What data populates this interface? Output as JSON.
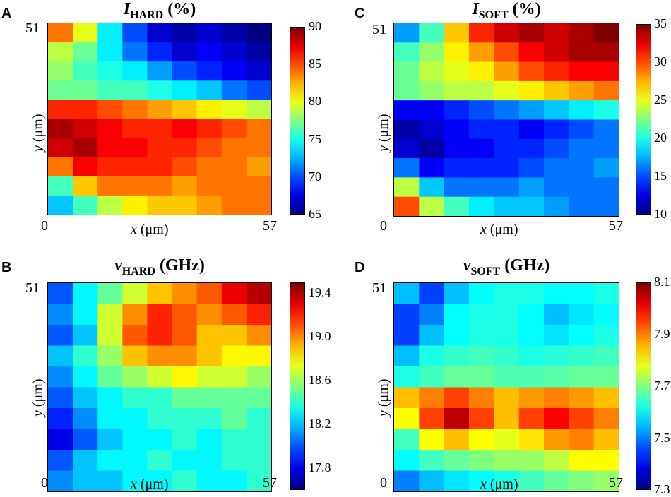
{
  "chart_data": [
    {
      "panel": "A",
      "type": "heatmap",
      "title_symbol": "I",
      "title_sub": "HARD",
      "title_unit": "(%)",
      "xlabel_sym": "x",
      "xlabel_unit": "(μm)",
      "ylabel_sym": "y",
      "ylabel_unit": "(μm)",
      "x_tick_labels": [
        "0",
        "57"
      ],
      "y_tick_labels": [
        "51"
      ],
      "xlim": [
        0,
        57
      ],
      "ylim": [
        0,
        51
      ],
      "colorbar": {
        "min": 65,
        "max": 90,
        "ticks": [
          "90",
          "85",
          "80",
          "75",
          "70",
          "65"
        ]
      },
      "grid": [
        [
          84,
          80,
          74,
          70,
          67,
          66,
          67,
          66,
          65
        ],
        [
          79,
          77,
          74,
          71,
          69,
          67,
          68,
          67,
          66
        ],
        [
          78,
          76,
          75,
          74,
          72,
          70,
          69,
          68,
          67
        ],
        [
          77,
          77,
          76,
          76,
          75,
          74,
          73,
          71,
          70
        ],
        [
          86,
          86,
          85,
          84,
          83,
          82,
          81,
          80,
          79
        ],
        [
          89,
          88,
          87,
          86,
          86,
          87,
          86,
          85,
          84
        ],
        [
          88,
          89,
          87,
          87,
          86,
          86,
          85,
          84,
          84
        ],
        [
          84,
          87,
          86,
          86,
          86,
          85,
          84,
          84,
          83
        ],
        [
          76,
          82,
          84,
          84,
          84,
          83,
          84,
          84,
          84
        ],
        [
          73,
          76,
          79,
          81,
          82,
          82,
          83,
          84,
          84
        ]
      ]
    },
    {
      "panel": "C",
      "type": "heatmap",
      "title_symbol": "I",
      "title_sub": "SOFT",
      "title_unit": "(%)",
      "xlabel_sym": "x",
      "xlabel_unit": "(μm)",
      "ylabel_sym": "y",
      "ylabel_unit": "(μm)",
      "x_tick_labels": [
        "0",
        "57"
      ],
      "y_tick_labels": [
        "51"
      ],
      "xlim": [
        0,
        57
      ],
      "ylim": [
        0,
        51
      ],
      "colorbar": {
        "min": 10,
        "max": 35,
        "ticks": [
          "35",
          "30",
          "25",
          "20",
          "15",
          "10"
        ]
      },
      "grid": [
        [
          17,
          21,
          27,
          31,
          33,
          34,
          33,
          34,
          35
        ],
        [
          21,
          23,
          26,
          28,
          30,
          32,
          33,
          34,
          34
        ],
        [
          22,
          24,
          25,
          26,
          28,
          30,
          31,
          32,
          32
        ],
        [
          22,
          23,
          24,
          24,
          25,
          26,
          27,
          28,
          29
        ],
        [
          13,
          13,
          14,
          15,
          16,
          17,
          18,
          19,
          20
        ],
        [
          11,
          12,
          13,
          14,
          14,
          13,
          14,
          15,
          16
        ],
        [
          12,
          11,
          13,
          13,
          14,
          14,
          15,
          16,
          16
        ],
        [
          16,
          13,
          14,
          14,
          14,
          15,
          16,
          16,
          17
        ],
        [
          24,
          18,
          16,
          16,
          16,
          17,
          16,
          16,
          16
        ],
        [
          30,
          24,
          21,
          19,
          18,
          18,
          17,
          16,
          16
        ]
      ]
    },
    {
      "panel": "B",
      "type": "heatmap",
      "title_symbol": "ν",
      "title_sub": "HARD",
      "title_unit": "(GHz)",
      "xlabel_sym": "x",
      "xlabel_unit": "(μm)",
      "ylabel_sym": "y",
      "ylabel_unit": "(μm)",
      "x_tick_labels": [
        "0",
        "57"
      ],
      "y_tick_labels": [
        "51"
      ],
      "xlim": [
        0,
        57
      ],
      "ylim": [
        0,
        51
      ],
      "colorbar": {
        "min": 17.6,
        "max": 19.5,
        "ticks": [
          "19.4",
          "19.0",
          "18.6",
          "18.2",
          "17.8"
        ]
      },
      "grid": [
        [
          18.0,
          18.3,
          18.5,
          18.7,
          18.9,
          19.0,
          19.1,
          19.3,
          19.4
        ],
        [
          18.1,
          18.3,
          18.7,
          19.0,
          19.2,
          19.1,
          19.0,
          19.1,
          19.2
        ],
        [
          18.0,
          18.2,
          18.7,
          19.1,
          19.2,
          19.1,
          18.9,
          18.9,
          19.0
        ],
        [
          18.2,
          18.4,
          18.6,
          18.9,
          19.0,
          19.0,
          18.9,
          18.8,
          18.8
        ],
        [
          18.1,
          18.3,
          18.5,
          18.6,
          18.7,
          18.8,
          18.7,
          18.7,
          18.6
        ],
        [
          18.0,
          18.2,
          18.3,
          18.4,
          18.4,
          18.5,
          18.5,
          18.5,
          18.5
        ],
        [
          17.9,
          18.1,
          18.3,
          18.3,
          18.4,
          18.4,
          18.4,
          18.5,
          18.4
        ],
        [
          17.8,
          18.0,
          18.2,
          18.3,
          18.3,
          18.4,
          18.3,
          18.4,
          18.4
        ],
        [
          18.0,
          18.2,
          18.3,
          18.3,
          18.4,
          18.3,
          18.3,
          18.4,
          18.4
        ],
        [
          18.1,
          18.2,
          18.2,
          18.3,
          18.3,
          18.4,
          18.3,
          18.3,
          18.4
        ]
      ]
    },
    {
      "panel": "D",
      "type": "heatmap",
      "title_symbol": "ν",
      "title_sub": "SOFT",
      "title_unit": "(GHz)",
      "xlabel_sym": "x",
      "xlabel_unit": "(μm)",
      "ylabel_sym": "y",
      "ylabel_unit": "(μm)",
      "x_tick_labels": [
        "0",
        "57"
      ],
      "y_tick_labels": [
        "51"
      ],
      "xlim": [
        0,
        57
      ],
      "ylim": [
        0,
        51
      ],
      "colorbar": {
        "min": 7.3,
        "max": 8.1,
        "ticks": [
          "8.1",
          "7.9",
          "7.7",
          "7.5",
          "7.3"
        ]
      },
      "grid": [
        [
          7.55,
          7.45,
          7.55,
          7.6,
          7.62,
          7.62,
          7.6,
          7.6,
          7.62
        ],
        [
          7.45,
          7.5,
          7.6,
          7.62,
          7.62,
          7.6,
          7.55,
          7.58,
          7.6
        ],
        [
          7.45,
          7.55,
          7.6,
          7.62,
          7.62,
          7.6,
          7.58,
          7.6,
          7.62
        ],
        [
          7.55,
          7.62,
          7.64,
          7.65,
          7.64,
          7.62,
          7.63,
          7.64,
          7.65
        ],
        [
          7.62,
          7.65,
          7.68,
          7.68,
          7.66,
          7.66,
          7.67,
          7.68,
          7.68
        ],
        [
          7.85,
          7.9,
          7.95,
          7.9,
          7.85,
          7.88,
          7.9,
          7.88,
          7.85
        ],
        [
          7.8,
          7.95,
          8.05,
          7.95,
          7.85,
          7.95,
          8.0,
          7.95,
          7.9
        ],
        [
          7.65,
          7.8,
          7.85,
          7.8,
          7.78,
          7.82,
          7.88,
          7.9,
          7.85
        ],
        [
          7.6,
          7.65,
          7.68,
          7.7,
          7.72,
          7.72,
          7.75,
          7.8,
          7.8
        ],
        [
          7.5,
          7.55,
          7.58,
          7.6,
          7.62,
          7.65,
          7.68,
          7.7,
          7.72
        ]
      ]
    }
  ]
}
